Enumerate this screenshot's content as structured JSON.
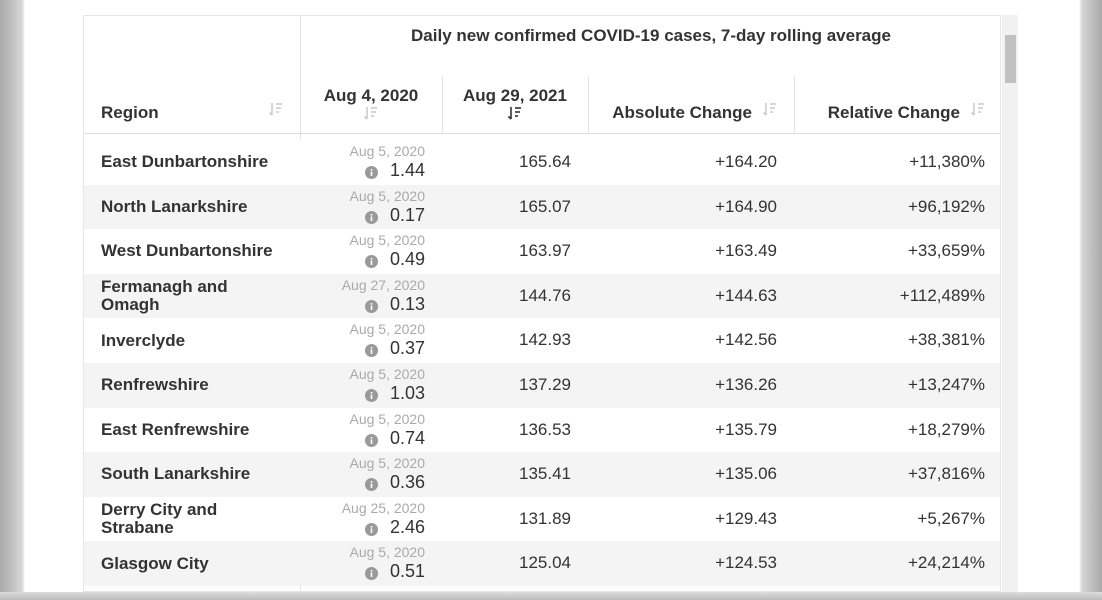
{
  "header": {
    "title": "Daily new confirmed COVID-19 cases, 7-day rolling average",
    "columns": [
      "Region",
      "Aug 4, 2020",
      "Aug 29, 2021",
      "Absolute Change",
      "Relative Change"
    ]
  },
  "rows": [
    {
      "region": "East Dunbartonshire",
      "date": "Aug 5, 2020",
      "start": "1.44",
      "end": "165.64",
      "abs": "+164.20",
      "rel": "+11,380%"
    },
    {
      "region": "North Lanarkshire",
      "date": "Aug 5, 2020",
      "start": "0.17",
      "end": "165.07",
      "abs": "+164.90",
      "rel": "+96,192%"
    },
    {
      "region": "West Dunbartonshire",
      "date": "Aug 5, 2020",
      "start": "0.49",
      "end": "163.97",
      "abs": "+163.49",
      "rel": "+33,659%"
    },
    {
      "region": "Fermanagh and Omagh",
      "date": "Aug 27, 2020",
      "start": "0.13",
      "end": "144.76",
      "abs": "+144.63",
      "rel": "+112,489%"
    },
    {
      "region": "Inverclyde",
      "date": "Aug 5, 2020",
      "start": "0.37",
      "end": "142.93",
      "abs": "+142.56",
      "rel": "+38,381%"
    },
    {
      "region": "Renfrewshire",
      "date": "Aug 5, 2020",
      "start": "1.03",
      "end": "137.29",
      "abs": "+136.26",
      "rel": "+13,247%"
    },
    {
      "region": "East Renfrewshire",
      "date": "Aug 5, 2020",
      "start": "0.74",
      "end": "136.53",
      "abs": "+135.79",
      "rel": "+18,279%"
    },
    {
      "region": "South Lanarkshire",
      "date": "Aug 5, 2020",
      "start": "0.36",
      "end": "135.41",
      "abs": "+135.06",
      "rel": "+37,816%"
    },
    {
      "region": "Derry City and Strabane",
      "date": "Aug 25, 2020",
      "start": "2.46",
      "end": "131.89",
      "abs": "+129.43",
      "rel": "+5,267%"
    },
    {
      "region": "Glasgow City",
      "date": "Aug 5, 2020",
      "start": "0.51",
      "end": "125.04",
      "abs": "+124.53",
      "rel": "+24,214%"
    }
  ]
}
